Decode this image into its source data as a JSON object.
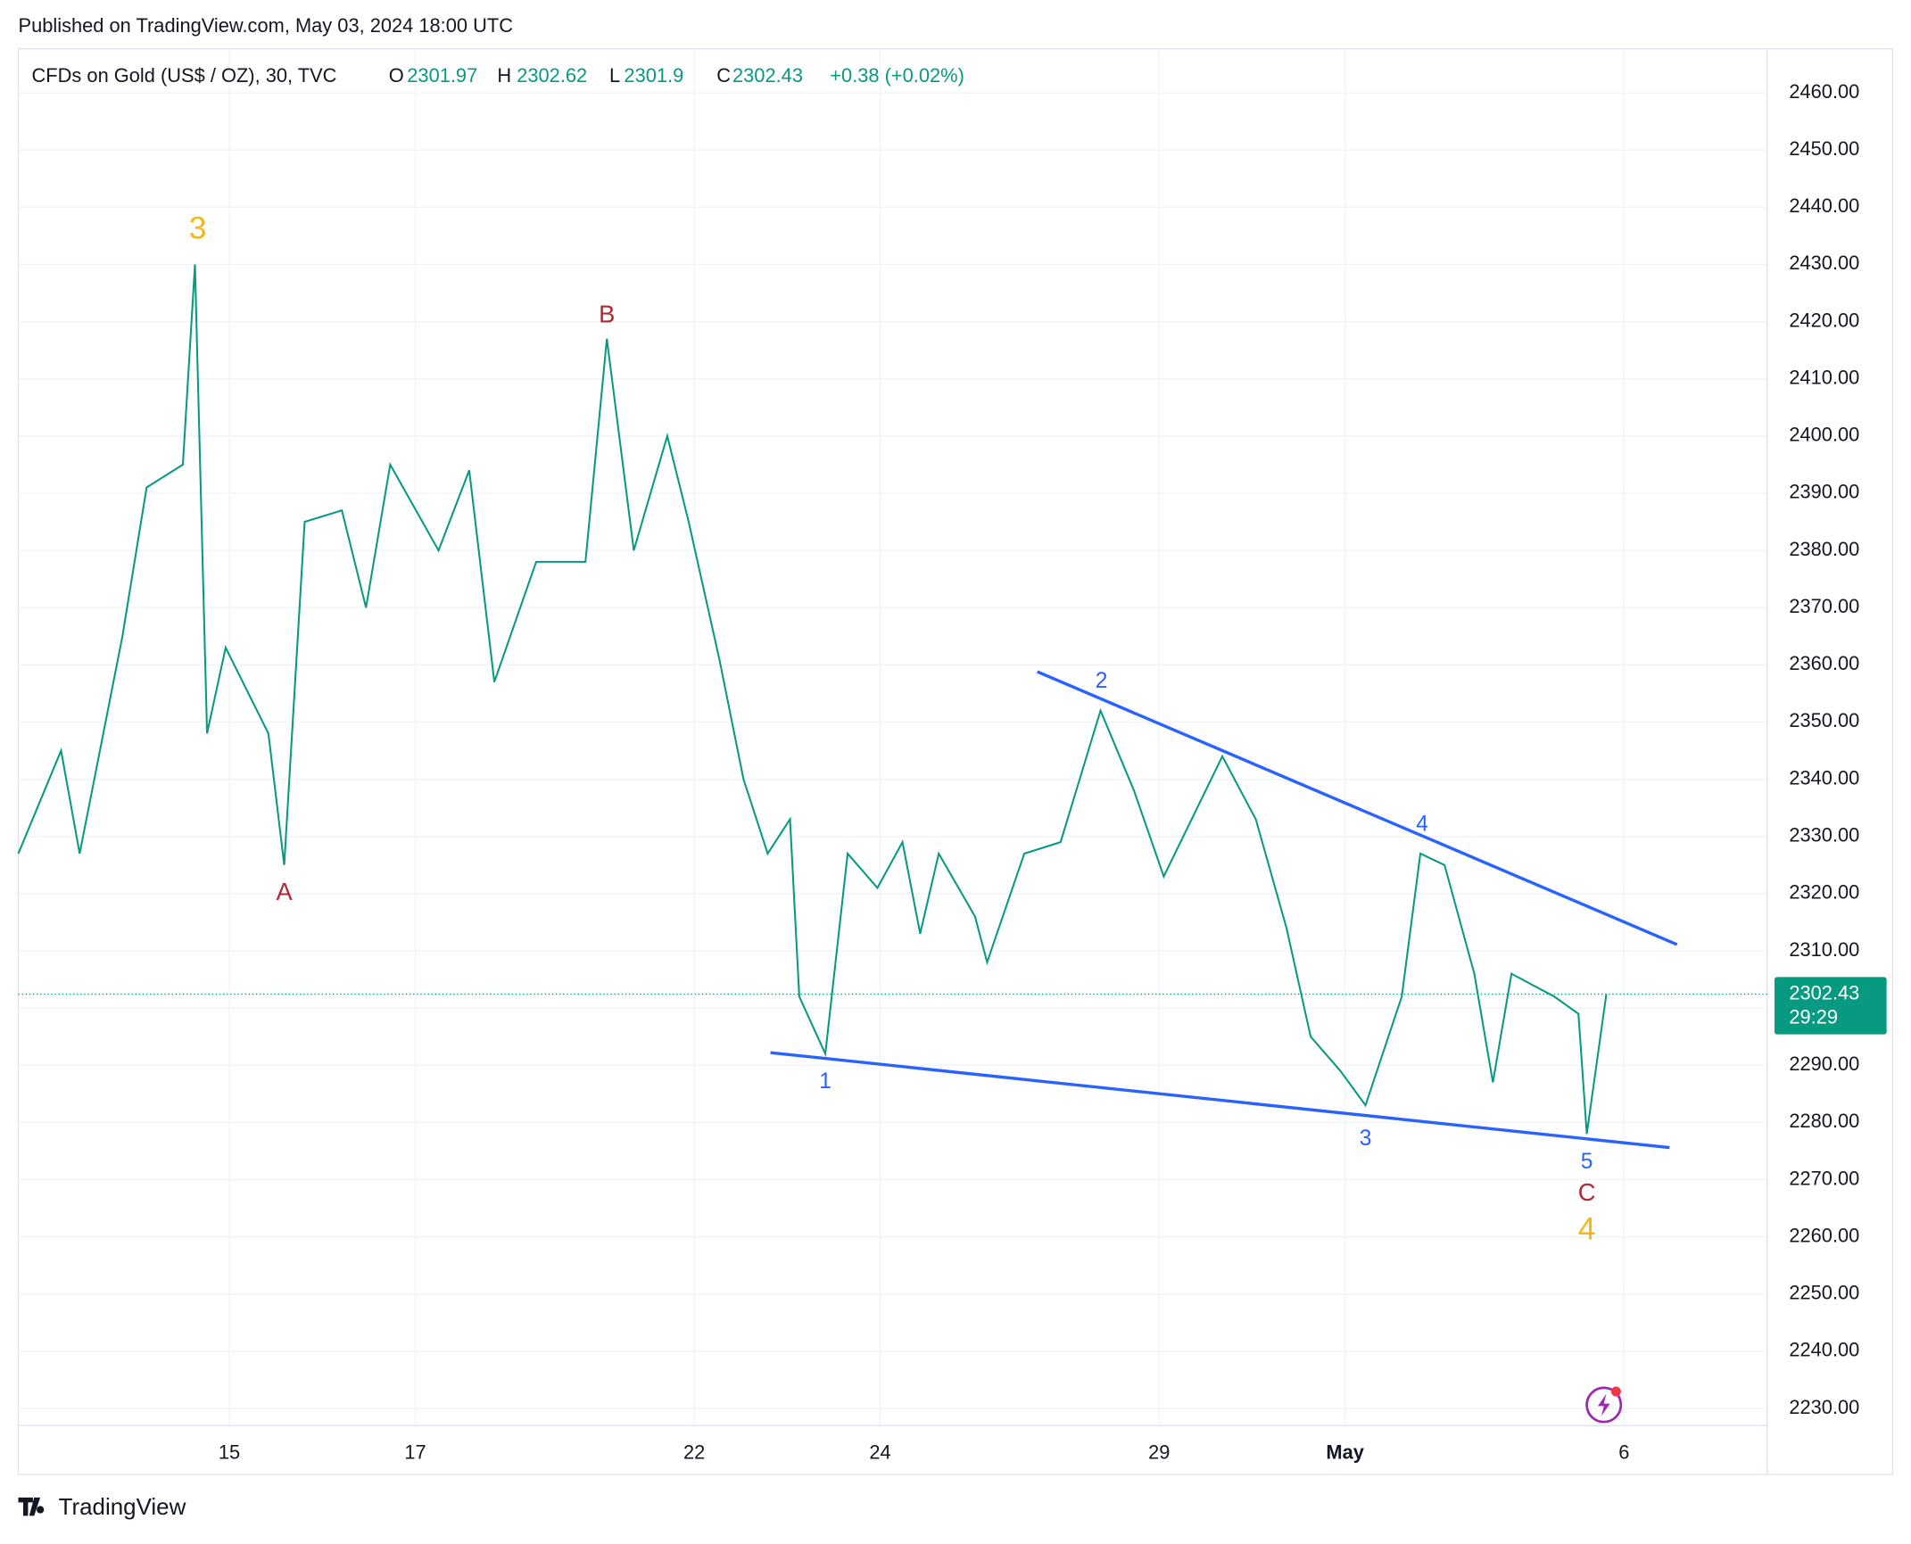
{
  "header": {
    "published": "Published on TradingView.com, May 03, 2024 18:00 UTC",
    "symbol": "CFDs on Gold (US$ / OZ), 30, TVC",
    "o_label": "O",
    "open": 2301.97,
    "h_label": "H",
    "high": 2302.62,
    "l_label": "L",
    "low": 2301.9,
    "c_label": "C",
    "close": 2302.43,
    "change": "+0.38 (+0.02%)"
  },
  "chart_data": {
    "type": "line",
    "color": "#089981",
    "x": [
      -2.27,
      -1.81,
      -1.61,
      -1.15,
      -0.89,
      -0.5,
      -0.37,
      -0.24,
      -0.04,
      0.42,
      0.59,
      0.81,
      1.21,
      1.47,
      1.73,
      2.25,
      2.58,
      2.85,
      3.3,
      3.83,
      4.06,
      4.35,
      4.71,
      4.94,
      5.27,
      5.53,
      5.79,
      6.03,
      6.13,
      6.41,
      6.65,
      6.97,
      7.24,
      7.43,
      7.63,
      8.02,
      8.15,
      8.55,
      8.94,
      9.37,
      9.73,
      10.05,
      10.68,
      11.04,
      11.37,
      11.63,
      11.95,
      12.22,
      12.61,
      12.81,
      13.07,
      13.39,
      13.59,
      13.79,
      14.25,
      14.51,
      14.6,
      14.81
    ],
    "values": [
      2327,
      2345,
      2327,
      2365,
      2391,
      2395,
      2430,
      2348,
      2363,
      2348,
      2325,
      2385,
      2387,
      2370,
      2395,
      2380,
      2394,
      2357,
      2378,
      2378,
      2417,
      2380,
      2400,
      2385,
      2361,
      2340,
      2327,
      2333,
      2302,
      2292,
      2327,
      2321,
      2329,
      2313,
      2327,
      2316,
      2308,
      2327,
      2329,
      2352,
      2338,
      2323,
      2344,
      2333,
      2314,
      2295,
      2289,
      2283,
      2302,
      2327,
      2325,
      2306,
      2287,
      2306,
      2302,
      2299,
      2278,
      2302.43
    ],
    "xlim": [
      -2.27,
      16.54
    ],
    "ylim": [
      2227.0,
      2467.7
    ],
    "xticks": [
      {
        "value": 0,
        "label": "15"
      },
      {
        "value": 2,
        "label": "17"
      },
      {
        "value": 5,
        "label": "22"
      },
      {
        "value": 7,
        "label": "24"
      },
      {
        "value": 10,
        "label": "29"
      },
      {
        "value": 12,
        "label": "May"
      },
      {
        "value": 15,
        "label": "6"
      }
    ],
    "yticks": [
      {
        "value": 2230,
        "label": "2230.00"
      },
      {
        "value": 2240,
        "label": "2240.00"
      },
      {
        "value": 2250,
        "label": "2250.00"
      },
      {
        "value": 2260,
        "label": "2260.00"
      },
      {
        "value": 2270,
        "label": "2270.00"
      },
      {
        "value": 2280,
        "label": "2280.00"
      },
      {
        "value": 2290,
        "label": "2290.00"
      },
      {
        "value": 2300,
        "label": "2300.00"
      },
      {
        "value": 2310,
        "label": "2310.00"
      },
      {
        "value": 2320,
        "label": "2320.00"
      },
      {
        "value": 2330,
        "label": "2330.00"
      },
      {
        "value": 2340,
        "label": "2340.00"
      },
      {
        "value": 2350,
        "label": "2350.00"
      },
      {
        "value": 2360,
        "label": "2360.00"
      },
      {
        "value": 2370,
        "label": "2370.00"
      },
      {
        "value": 2380,
        "label": "2380.00"
      },
      {
        "value": 2390,
        "label": "2390.00"
      },
      {
        "value": 2400,
        "label": "2400.00"
      },
      {
        "value": 2410,
        "label": "2410.00"
      },
      {
        "value": 2420,
        "label": "2420.00"
      },
      {
        "value": 2430,
        "label": "2430.00"
      },
      {
        "value": 2440,
        "label": "2440.00"
      },
      {
        "value": 2450,
        "label": "2450.00"
      },
      {
        "value": 2460,
        "label": "2460.00"
      }
    ],
    "grid": true,
    "last_price": {
      "value": 2302.43,
      "countdown": "29:29",
      "color": "#089981"
    },
    "trendlines": [
      {
        "start": [
          8.69,
          2358.8
        ],
        "end": [
          15.57,
          2311.1
        ],
        "color": "#2962ff"
      },
      {
        "start": [
          5.82,
          2292.2
        ],
        "end": [
          15.49,
          2275.6
        ],
        "color": "#2962ff"
      }
    ],
    "annotations": [
      {
        "text": "3",
        "x": -0.34,
        "y": 2436,
        "color": "#f7b618",
        "size": 26
      },
      {
        "text": "A",
        "x": 0.59,
        "y": 2320,
        "color": "#b22833",
        "size": 20
      },
      {
        "text": "B",
        "x": 4.06,
        "y": 2421,
        "color": "#b22833",
        "size": 20
      },
      {
        "text": "1",
        "x": 6.41,
        "y": 2287,
        "color": "#2962ff",
        "size": 18
      },
      {
        "text": "2",
        "x": 9.38,
        "y": 2357,
        "color": "#2962ff",
        "size": 18
      },
      {
        "text": "3",
        "x": 12.22,
        "y": 2277,
        "color": "#2962ff",
        "size": 18
      },
      {
        "text": "4",
        "x": 12.83,
        "y": 2332,
        "color": "#2962ff",
        "size": 18
      },
      {
        "text": "5",
        "x": 14.6,
        "y": 2273,
        "color": "#2962ff",
        "size": 18
      },
      {
        "text": "C",
        "x": 14.6,
        "y": 2267.5,
        "color": "#b22833",
        "size": 20
      },
      {
        "text": "4",
        "x": 14.6,
        "y": 2261,
        "color": "#f7b618",
        "size": 26
      }
    ]
  },
  "footer": {
    "brand": "TradingView"
  }
}
